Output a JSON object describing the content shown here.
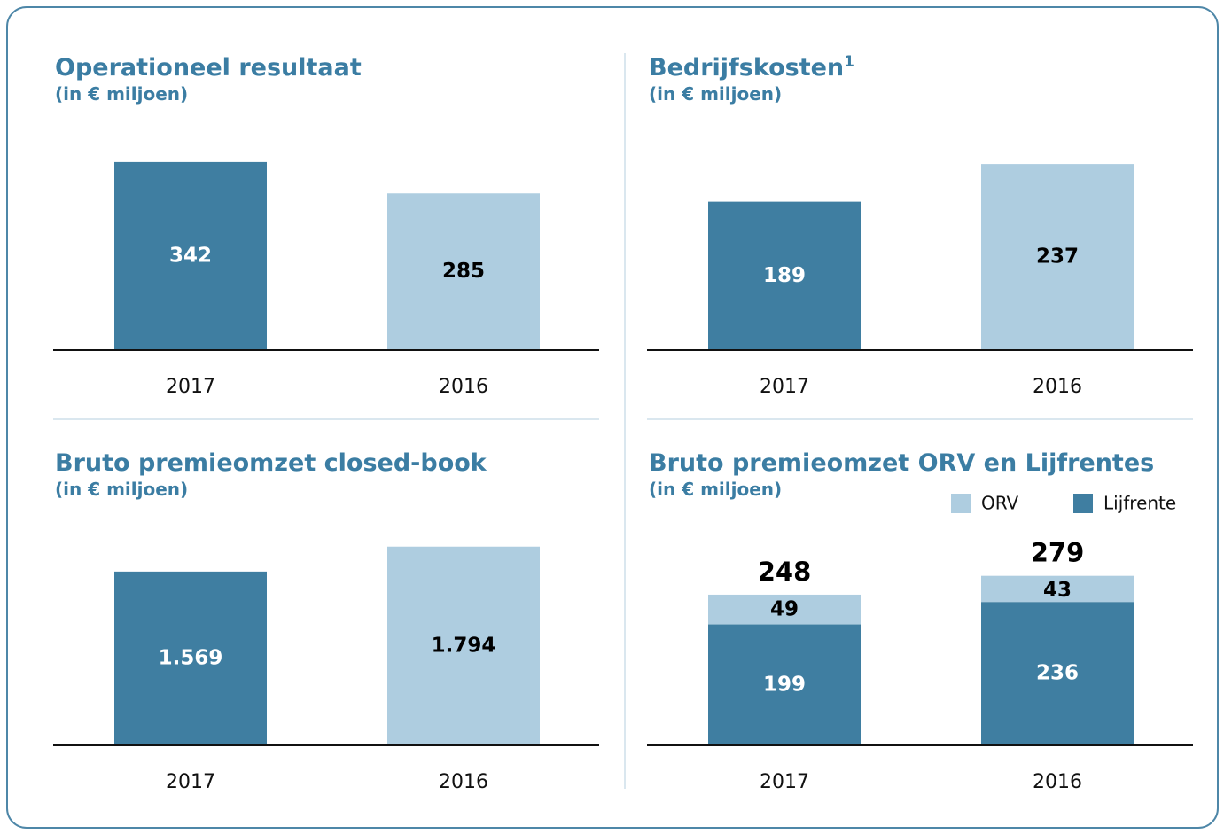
{
  "chart_data": [
    {
      "type": "bar",
      "title": "Operationeel resultaat",
      "subtitle": "(in € miljoen)",
      "categories": [
        "2017",
        "2016"
      ],
      "values": [
        342,
        285
      ],
      "colors": [
        "#3f7ea1",
        "#aecde0"
      ],
      "ylim": [
        0,
        387
      ]
    },
    {
      "type": "bar",
      "title": "Bedrijfskosten",
      "title_footnote": "1",
      "subtitle": "(in € miljoen)",
      "categories": [
        "2017",
        "2016"
      ],
      "values": [
        189,
        237
      ],
      "colors": [
        "#3f7ea1",
        "#aecde0"
      ],
      "ylim": [
        0,
        271
      ]
    },
    {
      "type": "bar",
      "title": "Bruto premieomzet closed-book",
      "subtitle": "(in € miljoen)",
      "categories": [
        "2017",
        "2016"
      ],
      "values": [
        1569,
        1794
      ],
      "value_labels": [
        "1.569",
        "1.794"
      ],
      "colors": [
        "#3f7ea1",
        "#aecde0"
      ],
      "ylim": [
        0,
        1920
      ]
    },
    {
      "type": "stacked_bar",
      "title": "Bruto premieomzet ORV en Lijfrentes",
      "subtitle": "(in € miljoen)",
      "categories": [
        "2017",
        "2016"
      ],
      "series": [
        {
          "name": "Lijfrente",
          "color": "#3f7ea1",
          "values": [
            199,
            236
          ]
        },
        {
          "name": "ORV",
          "color": "#aecde0",
          "values": [
            49,
            43
          ]
        }
      ],
      "totals": [
        248,
        279
      ],
      "legend": "top-right",
      "legend_order": [
        1,
        0
      ],
      "ylim": [
        0,
        350
      ]
    }
  ]
}
